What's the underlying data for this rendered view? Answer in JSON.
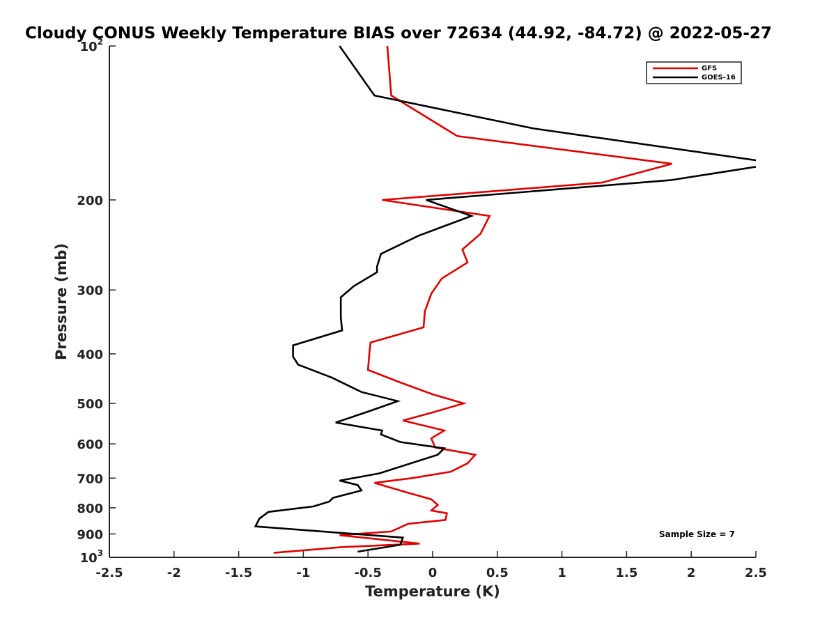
{
  "chart_data": {
    "type": "line",
    "title": "Cloudy CONUS Weekly Temperature BIAS over 72634 (44.92, -84.72) @ 2022-05-27",
    "xlabel": "Temperature (K)",
    "ylabel": "Pressure (mb)",
    "xlim": [
      -2.5,
      2.5
    ],
    "ylim": [
      100,
      1000
    ],
    "y_scale": "log",
    "y_reversed": true,
    "grid": false,
    "legend_position": "top-right",
    "x_ticks": [
      "-2.5",
      "-2",
      "-1.5",
      "-1",
      "-0.5",
      "0",
      "0.5",
      "1",
      "1.5",
      "2",
      "2.5"
    ],
    "y_ticks": [
      {
        "value": 100,
        "base": "10",
        "exp": "2"
      },
      {
        "value": 200,
        "base": "200",
        "exp": ""
      },
      {
        "value": 300,
        "base": "300",
        "exp": ""
      },
      {
        "value": 400,
        "base": "400",
        "exp": ""
      },
      {
        "value": 500,
        "base": "500",
        "exp": ""
      },
      {
        "value": 600,
        "base": "600",
        "exp": ""
      },
      {
        "value": 700,
        "base": "700",
        "exp": ""
      },
      {
        "value": 800,
        "base": "800",
        "exp": ""
      },
      {
        "value": 900,
        "base": "900",
        "exp": ""
      },
      {
        "value": 1000,
        "base": "10",
        "exp": "3"
      }
    ],
    "annotation": "Sample Size = 7",
    "series": [
      {
        "name": "GFS",
        "color": "#e00000",
        "points": [
          [
            -0.35,
            100
          ],
          [
            -0.32,
            125
          ],
          [
            0.19,
            150
          ],
          [
            1.85,
            170
          ],
          [
            1.31,
            185
          ],
          [
            -0.39,
            200
          ],
          [
            0.44,
            215
          ],
          [
            0.37,
            233
          ],
          [
            0.23,
            250
          ],
          [
            0.27,
            265
          ],
          [
            0.07,
            285
          ],
          [
            -0.01,
            305
          ],
          [
            -0.06,
            330
          ],
          [
            -0.07,
            355
          ],
          [
            -0.48,
            380
          ],
          [
            -0.49,
            400
          ],
          [
            -0.5,
            430
          ],
          [
            -0.25,
            455
          ],
          [
            0.0,
            480
          ],
          [
            0.24,
            500
          ],
          [
            0.01,
            520
          ],
          [
            -0.23,
            540
          ],
          [
            0.09,
            565
          ],
          [
            -0.01,
            585
          ],
          [
            0.02,
            610
          ],
          [
            0.33,
            630
          ],
          [
            0.27,
            655
          ],
          [
            0.14,
            680
          ],
          [
            -0.16,
            700
          ],
          [
            -0.45,
            715
          ],
          [
            -0.21,
            745
          ],
          [
            -0.01,
            770
          ],
          [
            0.04,
            790
          ],
          [
            -0.01,
            810
          ],
          [
            0.11,
            820
          ],
          [
            0.1,
            845
          ],
          [
            -0.19,
            860
          ],
          [
            -0.32,
            890
          ],
          [
            -0.72,
            905
          ],
          [
            -0.1,
            940
          ],
          [
            -0.7,
            955
          ],
          [
            -1.23,
            980
          ]
        ]
      },
      {
        "name": "GOES-16",
        "color": "#000000",
        "points": [
          [
            -0.72,
            100
          ],
          [
            -0.45,
            125
          ],
          [
            0.78,
            145
          ],
          [
            2.55,
            168
          ],
          [
            2.52,
            172
          ],
          [
            1.84,
            183
          ],
          [
            -0.05,
            200
          ],
          [
            0.3,
            215
          ],
          [
            -0.11,
            235
          ],
          [
            -0.4,
            255
          ],
          [
            -0.43,
            270
          ],
          [
            -0.43,
            277
          ],
          [
            -0.61,
            295
          ],
          [
            -0.71,
            310
          ],
          [
            -0.71,
            340
          ],
          [
            -0.7,
            360
          ],
          [
            -1.08,
            385
          ],
          [
            -1.08,
            405
          ],
          [
            -1.04,
            420
          ],
          [
            -0.78,
            445
          ],
          [
            -0.55,
            475
          ],
          [
            -0.27,
            495
          ],
          [
            -0.51,
            520
          ],
          [
            -0.75,
            545
          ],
          [
            -0.39,
            565
          ],
          [
            -0.4,
            575
          ],
          [
            -0.25,
            595
          ],
          [
            0.09,
            612
          ],
          [
            0.04,
            630
          ],
          [
            -0.21,
            660
          ],
          [
            -0.41,
            685
          ],
          [
            -0.72,
            708
          ],
          [
            -0.58,
            722
          ],
          [
            -0.55,
            740
          ],
          [
            -0.77,
            765
          ],
          [
            -0.8,
            778
          ],
          [
            -0.92,
            795
          ],
          [
            -1.27,
            815
          ],
          [
            -1.34,
            840
          ],
          [
            -1.37,
            870
          ],
          [
            -0.23,
            915
          ],
          [
            -0.25,
            945
          ],
          [
            -0.58,
            975
          ]
        ]
      }
    ]
  }
}
